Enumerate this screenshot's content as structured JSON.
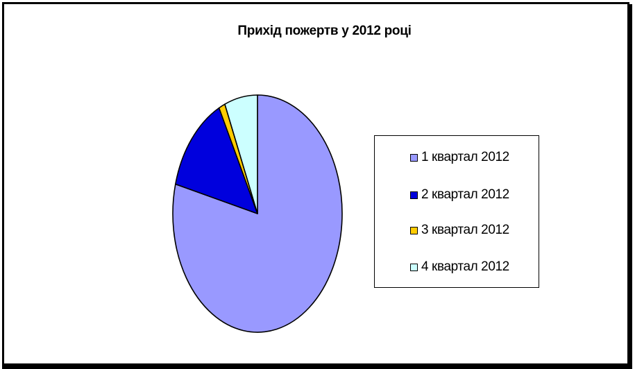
{
  "chart_data": {
    "type": "pie",
    "title": "Прихід пожертв у 2012 році",
    "categories": [
      "1 квартал 2012",
      "2 квартал 2012",
      "3 квартал 2012",
      "4 квартал 2012"
    ],
    "values": [
      79,
      13.5,
      1.2,
      6.3
    ],
    "colors": [
      "#9999ff",
      "#0000dd",
      "#ffcc00",
      "#ccffff"
    ],
    "legend_position": "right"
  }
}
